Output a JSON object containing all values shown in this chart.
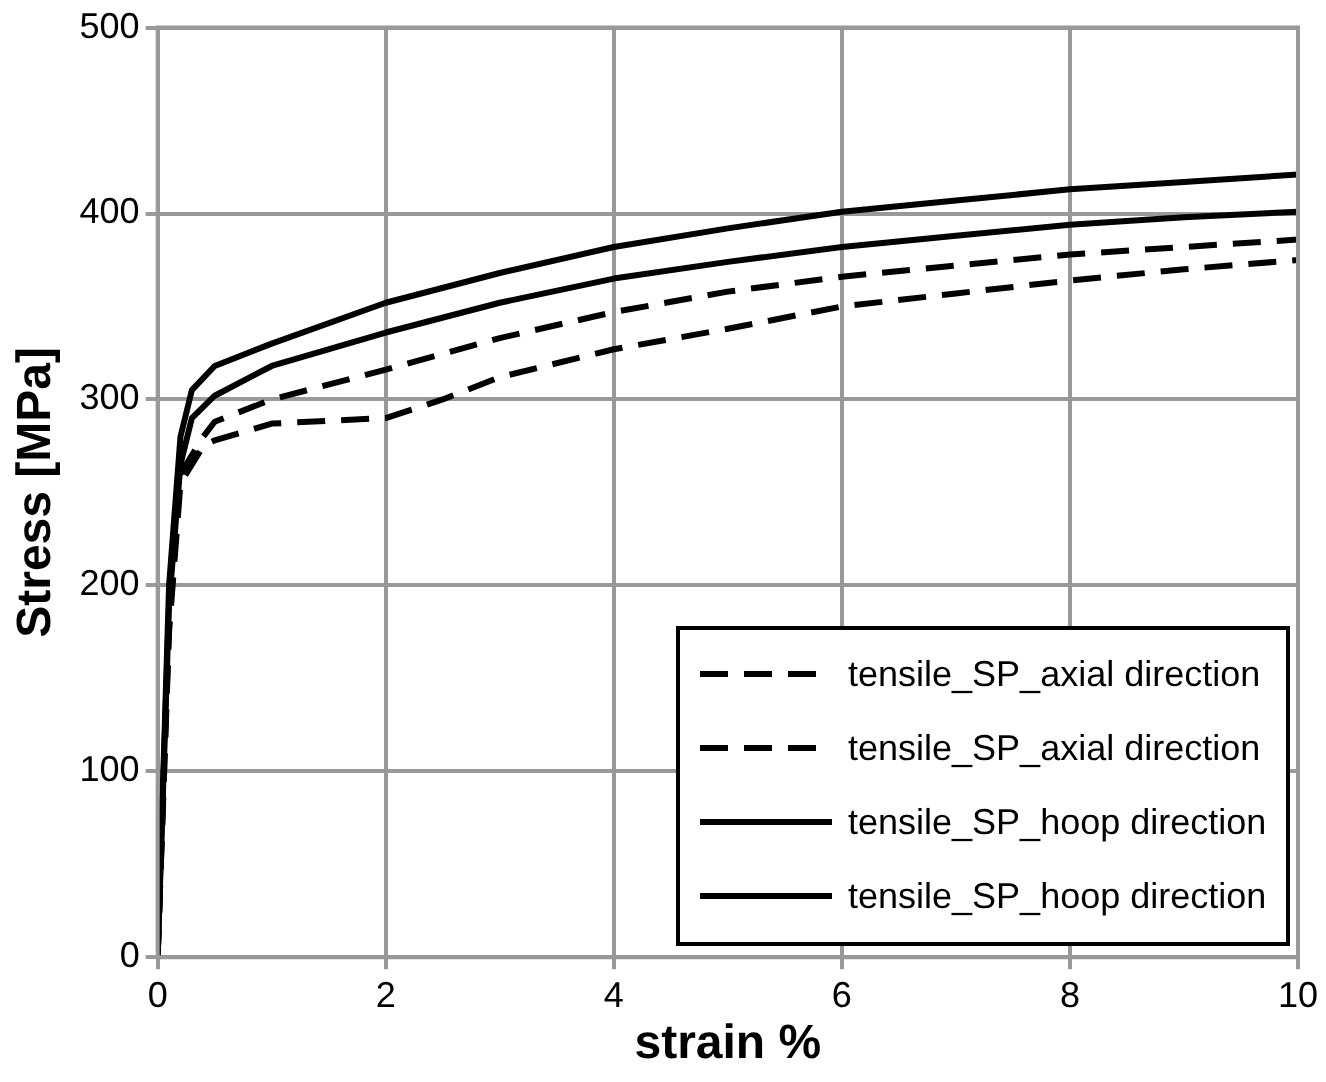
{
  "chart_data": {
    "type": "line",
    "xlabel": "strain %",
    "ylabel": "Stress [MPa]",
    "xlim": [
      0,
      10
    ],
    "xticks": [
      0,
      2,
      4,
      6,
      8,
      10
    ],
    "ylim": [
      0,
      500
    ],
    "yticks": [
      0,
      100,
      200,
      300,
      400,
      500
    ],
    "grid": true,
    "legend": "bottom right",
    "marker": "none",
    "series": [
      {
        "name": "tensile_SP_axial direction",
        "color": "#000000",
        "line_style": "dashed",
        "x": [
          0,
          0.1,
          0.2,
          0.4,
          0.5,
          1,
          2,
          3,
          4,
          5,
          6,
          7,
          8,
          9,
          10
        ],
        "values": [
          0,
          180,
          260,
          280,
          288,
          300,
          316,
          333,
          347,
          358,
          366,
          372,
          378,
          382,
          386
        ]
      },
      {
        "name": "tensile_SP_axial direction",
        "color": "#000000",
        "line_style": "dashed",
        "x": [
          0,
          0.1,
          0.2,
          0.4,
          0.5,
          1,
          2,
          2.5,
          3,
          4,
          5,
          6,
          7,
          8,
          9,
          10
        ],
        "values": [
          0,
          175,
          255,
          275,
          278,
          287,
          290,
          300,
          312,
          327,
          338,
          350,
          357,
          364,
          370,
          375
        ]
      },
      {
        "name": "tensile_SP_hoop direction",
        "color": "#000000",
        "line_style": "solid",
        "x": [
          0,
          0.1,
          0.2,
          0.3,
          0.5,
          1,
          2,
          3,
          4,
          5,
          6,
          7,
          8,
          9,
          10
        ],
        "values": [
          0,
          190,
          265,
          290,
          302,
          318,
          336,
          352,
          365,
          374,
          382,
          388,
          394,
          398,
          401
        ]
      },
      {
        "name": "tensile_SP_hoop direction",
        "color": "#000000",
        "line_style": "solid",
        "x": [
          0,
          0.1,
          0.2,
          0.3,
          0.5,
          1,
          2,
          3,
          4,
          5,
          6,
          7,
          8,
          9,
          10
        ],
        "values": [
          0,
          200,
          280,
          305,
          318,
          330,
          352,
          368,
          382,
          392,
          401,
          407,
          413,
          417,
          421
        ]
      }
    ]
  }
}
